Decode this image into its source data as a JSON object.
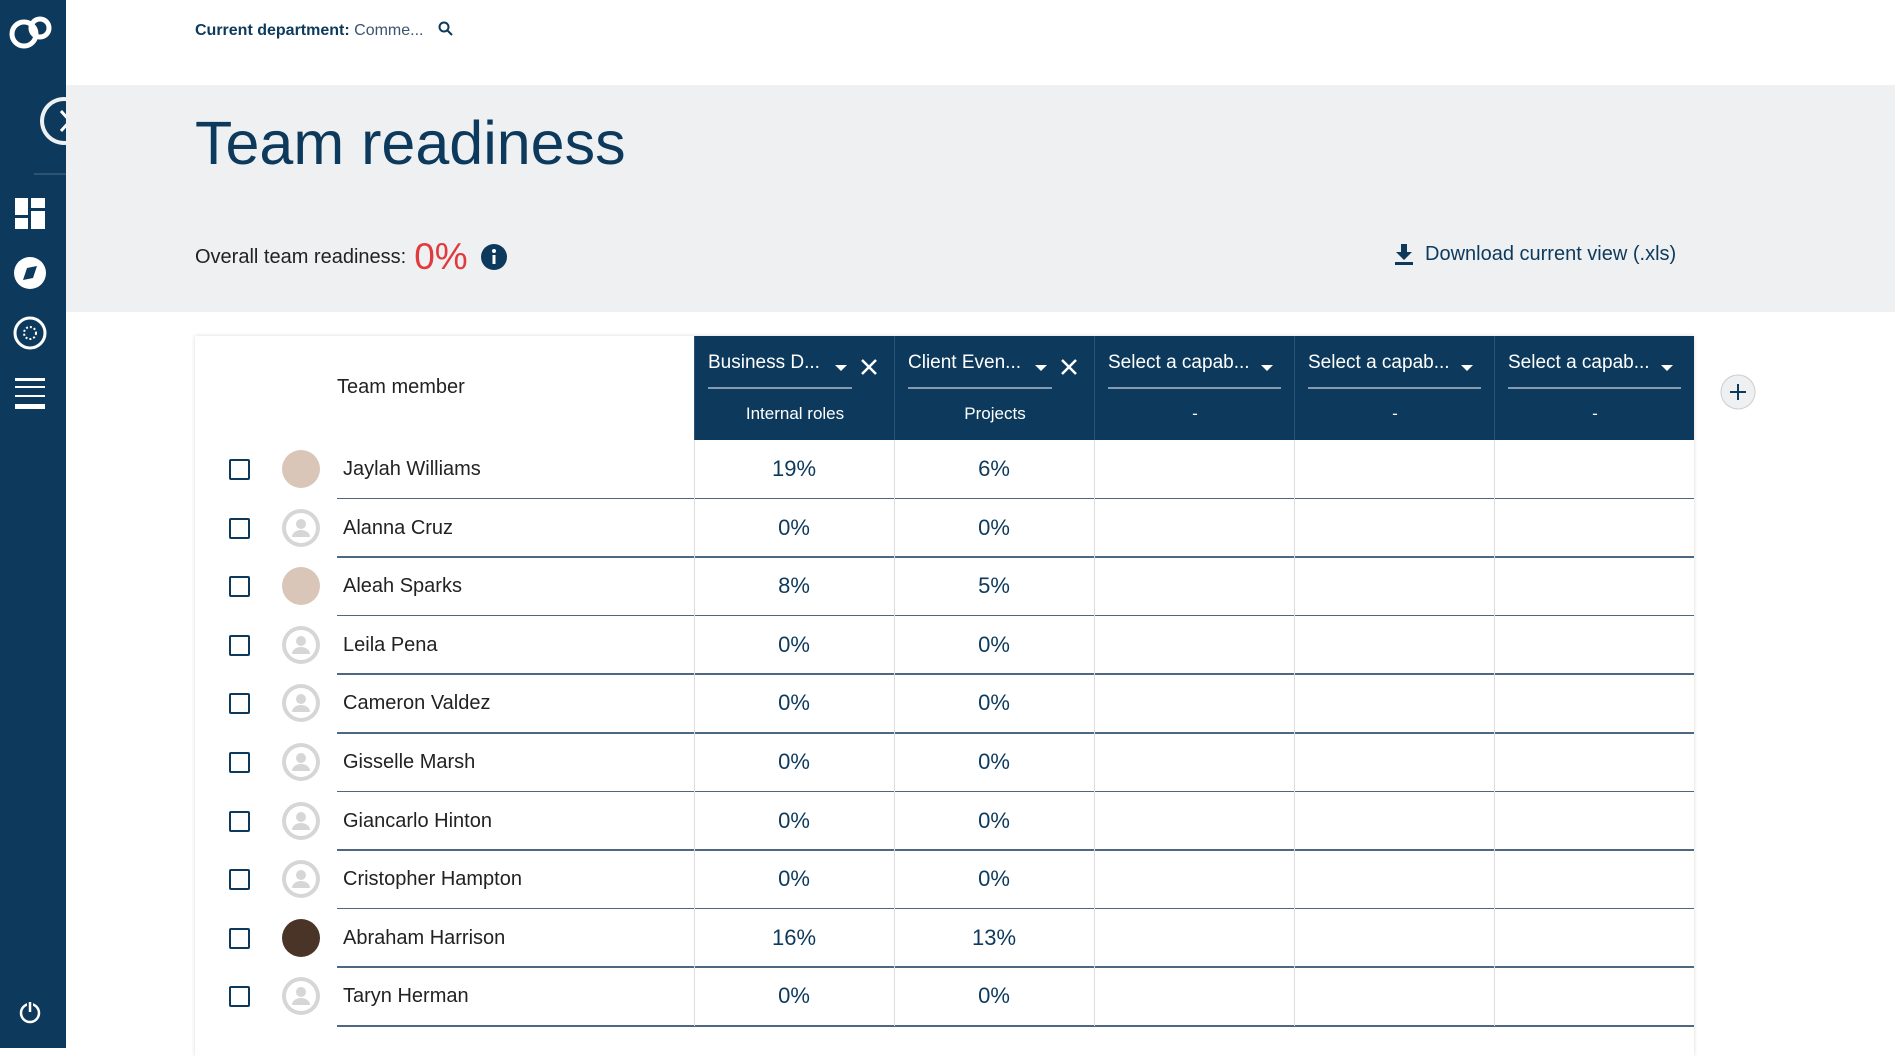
{
  "header": {
    "department_label": "Current department:",
    "department_value": "Comme..."
  },
  "page": {
    "title": "Team readiness",
    "overall_label": "Overall team readiness:",
    "overall_value": "0%",
    "download": "Download current view (.xls)"
  },
  "table": {
    "member_header": "Team member",
    "columns": [
      {
        "capability": "Business D...",
        "group": "Internal roles"
      },
      {
        "capability": "Client Even...",
        "group": "Projects"
      },
      {
        "capability": "Select a capab...",
        "group": "-"
      },
      {
        "capability": "Select a capab...",
        "group": "-"
      },
      {
        "capability": "Select a capab...",
        "group": "-"
      }
    ],
    "rows": [
      {
        "name": "Jaylah Williams",
        "cells": [
          "19%",
          "6%"
        ]
      },
      {
        "name": "Alanna Cruz",
        "cells": [
          "0%",
          "0%"
        ]
      },
      {
        "name": "Aleah Sparks",
        "cells": [
          "8%",
          "5%"
        ]
      },
      {
        "name": "Leila Pena",
        "cells": [
          "0%",
          "0%"
        ]
      },
      {
        "name": "Cameron Valdez",
        "cells": [
          "0%",
          "0%"
        ]
      },
      {
        "name": "Gisselle Marsh",
        "cells": [
          "0%",
          "0%"
        ]
      },
      {
        "name": "Giancarlo Hinton",
        "cells": [
          "0%",
          "0%"
        ]
      },
      {
        "name": "Cristopher Hampton",
        "cells": [
          "0%",
          "0%"
        ]
      },
      {
        "name": "Abraham Harrison",
        "cells": [
          "16%",
          "13%"
        ]
      },
      {
        "name": "Taryn Herman",
        "cells": [
          "0%",
          "0%"
        ]
      }
    ]
  }
}
